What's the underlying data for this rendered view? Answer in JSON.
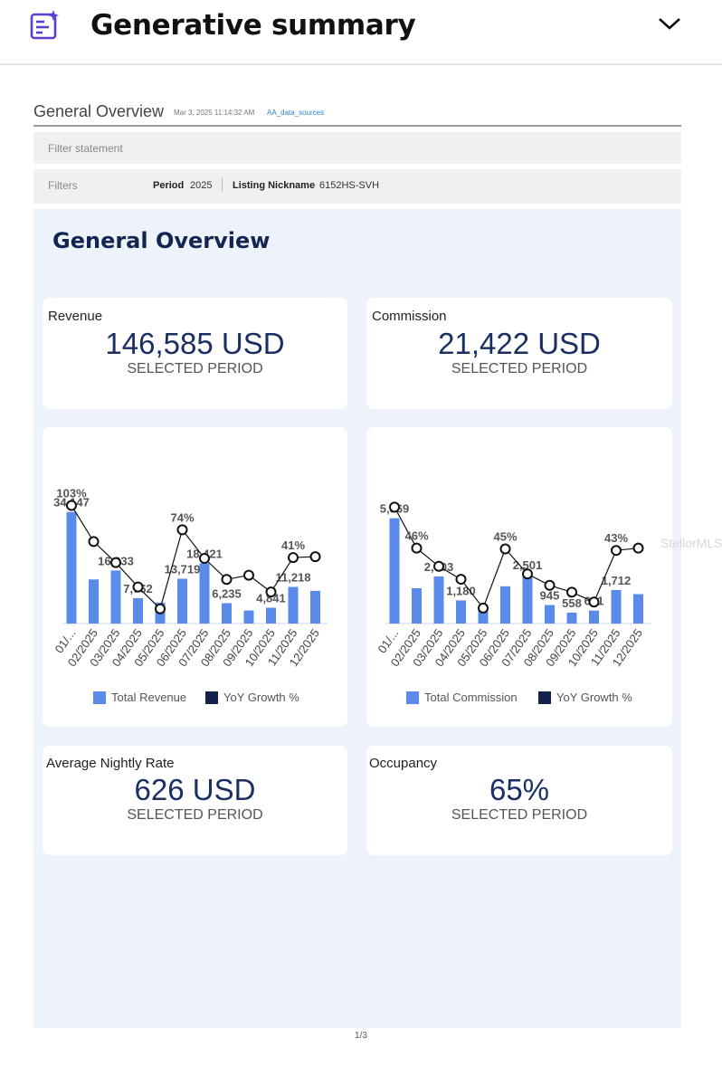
{
  "header": {
    "title": "Generative summary",
    "ai_icon": "ai-summary-icon",
    "collapse_icon": "chevron-down-icon"
  },
  "doc": {
    "title": "General Overview",
    "date": "Mar 3, 2025 11:14:32 AM",
    "source_link": "AA_data_sources",
    "filter_statement_label": "Filter statement",
    "filters_label": "Filters",
    "filters": [
      {
        "key": "Period",
        "value": "2025"
      },
      {
        "key": "Listing Nickname",
        "value": "6152HS-SVH"
      }
    ]
  },
  "panel": {
    "title": "General Overview",
    "kpis": {
      "revenue": {
        "label": "Revenue",
        "value": "146,585 USD",
        "sub": "SELECTED PERIOD"
      },
      "commission": {
        "label": "Commission",
        "value": "21,422 USD",
        "sub": "SELECTED PERIOD"
      },
      "nightly": {
        "label": "Average Nightly Rate",
        "value": "626 USD",
        "sub": "SELECTED PERIOD"
      },
      "occupancy": {
        "label": "Occupancy",
        "value": "65%",
        "sub": "SELECTED PERIOD"
      }
    }
  },
  "colors": {
    "bar": "#5a8bea",
    "growth": "#13224d",
    "title": "#122650"
  },
  "chart_data": [
    {
      "type": "bar",
      "categories": [
        "01/...",
        "02/2025",
        "03/2025",
        "04/2025",
        "05/2025",
        "06/2025",
        "07/2025",
        "08/2025",
        "09/2025",
        "10/2025",
        "11/2025",
        "12/2025"
      ],
      "series": [
        {
          "name": "Total Revenue",
          "type": "bar",
          "values": [
            34147,
            13500,
            16233,
            7762,
            6400,
            13719,
            18421,
            6235,
            4000,
            4841,
            11218,
            10000
          ]
        },
        {
          "name": "YoY Growth %",
          "type": "line",
          "values": [
            103,
            60,
            35,
            6,
            -20,
            74,
            40,
            15,
            20,
            0,
            41,
            42
          ]
        }
      ],
      "data_labels": [
        "34,147",
        "",
        "16,233",
        "7,762",
        "",
        "13,719",
        "18,421",
        "6,235",
        "",
        "4,841",
        "11,218",
        ""
      ],
      "pct_labels": [
        "103%",
        "",
        "",
        "",
        "",
        "74%",
        "",
        "",
        "",
        "",
        "41%",
        ""
      ],
      "ylim": [
        0,
        36000
      ],
      "growth_ylim": [
        -30,
        110
      ],
      "legend": "bottom"
    },
    {
      "type": "bar",
      "categories": [
        "01/...",
        "02/2025",
        "03/2025",
        "04/2025",
        "05/2025",
        "06/2025",
        "07/2025",
        "08/2025",
        "09/2025",
        "10/2025",
        "11/2025",
        "12/2025"
      ],
      "series": [
        {
          "name": "Total Commission",
          "type": "bar",
          "values": [
            5369,
            1800,
            2403,
            1180,
            800,
            1900,
            2501,
            945,
            558,
            661,
            1712,
            1500
          ]
        },
        {
          "name": "YoY Growth %",
          "type": "line",
          "values": [
            100,
            46,
            22,
            5,
            -33,
            45,
            12,
            -3,
            -12,
            -25,
            43,
            46
          ]
        }
      ],
      "data_labels": [
        "5,369",
        "",
        "2,403",
        "1,180",
        "",
        "",
        "2,501",
        "945",
        "558",
        "661",
        "1,712",
        ""
      ],
      "pct_labels": [
        "",
        "46%",
        "",
        "",
        "",
        "45%",
        "",
        "",
        "",
        "",
        "43%",
        ""
      ],
      "ylim": [
        0,
        6000
      ],
      "growth_ylim": [
        -45,
        110
      ],
      "legend": "bottom"
    }
  ],
  "page_indicator": "1/3",
  "watermark": "StellorMLS"
}
